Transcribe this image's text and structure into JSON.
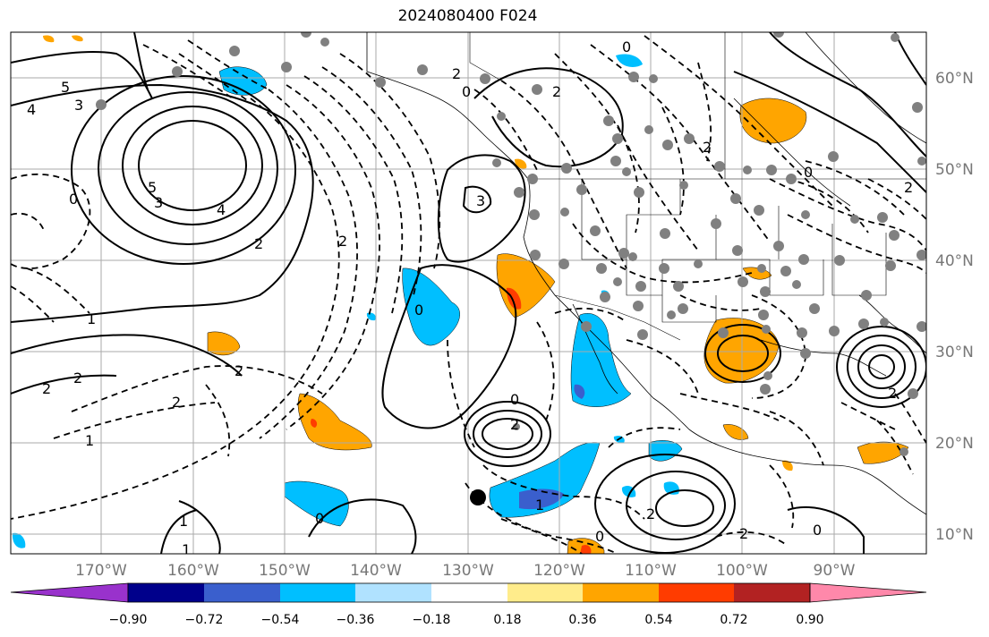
{
  "title": "2024080400 F024",
  "map": {
    "lon_labels": [
      "170°W",
      "160°W",
      "150°W",
      "140°W",
      "130°W",
      "120°W",
      "110°W",
      "100°W",
      "90°W"
    ],
    "lat_labels": [
      "60°N",
      "50°N",
      "40°N",
      "30°N",
      "20°N",
      "10°N"
    ],
    "contour_labels": [
      "5",
      "3",
      "4",
      "5",
      "3",
      "4",
      "2",
      "0",
      "1",
      "2",
      "1",
      "2",
      "2",
      "2",
      "2",
      "0",
      "0",
      "3",
      "2",
      "0",
      "2",
      "2",
      "0",
      "2",
      "1",
      "1",
      "0",
      "2",
      "2",
      "0",
      "0",
      "2",
      "1",
      "2",
      "0"
    ],
    "colors": {
      "positive_fill": "#ffa500",
      "strong_positive_fill": "#ff3c00",
      "negative_fill": "#00bfff",
      "strong_negative_fill": "#3a5fcd",
      "contour": "#000000",
      "station_marker": "#808080",
      "storm_marker": "#000000"
    }
  },
  "colorbar": {
    "tick_labels": [
      "−0.90",
      "−0.72",
      "−0.54",
      "−0.36",
      "−0.18",
      "0.18",
      "0.36",
      "0.54",
      "0.72",
      "0.90"
    ],
    "colors": [
      "#9932cc",
      "#00008b",
      "#3a5fcd",
      "#00bfff",
      "#b0e2ff",
      "#ffffff",
      "#ffec8b",
      "#ffa500",
      "#ff3c00",
      "#b22222",
      "#ff88aa"
    ]
  }
}
